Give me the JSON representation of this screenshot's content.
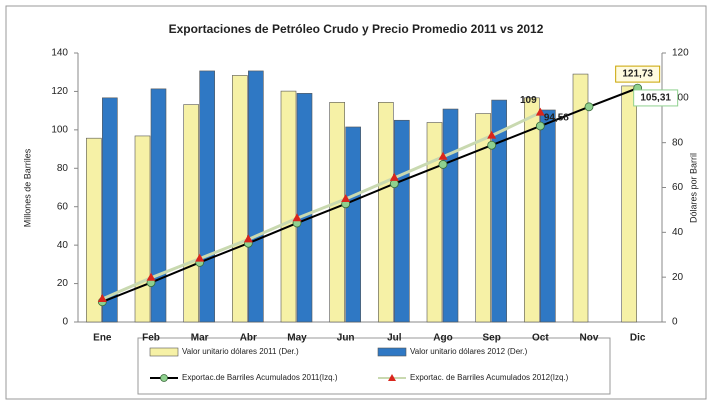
{
  "chart_data": {
    "type": "bar-line",
    "title": "Exportaciones de Petróleo Crudo y Precio Promedio 2011 vs 2012",
    "y_label": "Millones de Barriles",
    "y2_label": "Dólares por Barril",
    "categories": [
      "Ene",
      "Feb",
      "Mar",
      "Abr",
      "May",
      "Jun",
      "Jul",
      "Ago",
      "Sep",
      "Oct",
      "Nov",
      "Dic"
    ],
    "ylim": [
      0,
      140
    ],
    "yticks": [
      0,
      20,
      40,
      60,
      80,
      100,
      120,
      140
    ],
    "y2lim": [
      0,
      120
    ],
    "y2ticks": [
      0,
      20,
      40,
      60,
      80,
      100,
      120
    ],
    "grid": false,
    "series": [
      {
        "name": "Valor unitario dólares 2011 (Der.)",
        "type": "bar",
        "axis": "y2",
        "color": "#f6f1a6",
        "values": [
          82,
          83,
          97,
          110,
          103,
          98,
          98,
          89,
          93,
          100,
          110.6,
          105.31
        ],
        "value_labels": [
          null,
          null,
          null,
          null,
          null,
          null,
          null,
          null,
          null,
          null,
          null,
          "105,31"
        ]
      },
      {
        "name": "Valor unitario dólares 2012 (Der.)",
        "type": "bar",
        "axis": "y2",
        "color": "#2f78c4",
        "values": [
          100,
          104,
          112,
          112,
          102,
          87,
          90,
          95,
          99,
          94.58,
          null,
          null
        ],
        "value_labels": [
          null,
          null,
          null,
          null,
          null,
          null,
          null,
          null,
          null,
          "94,58",
          null,
          null
        ]
      },
      {
        "name": "Exportac.de Barriles Acumulados 2011(Izq.)",
        "type": "line",
        "axis": "y",
        "color": "#000000",
        "marker_color": "#8fd18f",
        "marker": "circle",
        "values": [
          10.5,
          20.5,
          31,
          41,
          51.5,
          61.5,
          72,
          82,
          92,
          102,
          112,
          121.73
        ],
        "value_labels": [
          null,
          null,
          null,
          null,
          null,
          null,
          null,
          null,
          null,
          null,
          null,
          "121,73"
        ]
      },
      {
        "name": "Exportac. de Barriles Acumulados 2012(Izq.)",
        "type": "line",
        "axis": "y",
        "color": "#c9d9b0",
        "marker_color": "#d9261c",
        "marker": "triangle",
        "values": [
          12,
          23,
          33,
          43,
          54,
          64,
          75,
          86,
          97,
          109,
          null,
          null
        ],
        "value_labels": [
          null,
          null,
          null,
          null,
          null,
          null,
          null,
          null,
          null,
          "109",
          null,
          null
        ]
      }
    ]
  }
}
